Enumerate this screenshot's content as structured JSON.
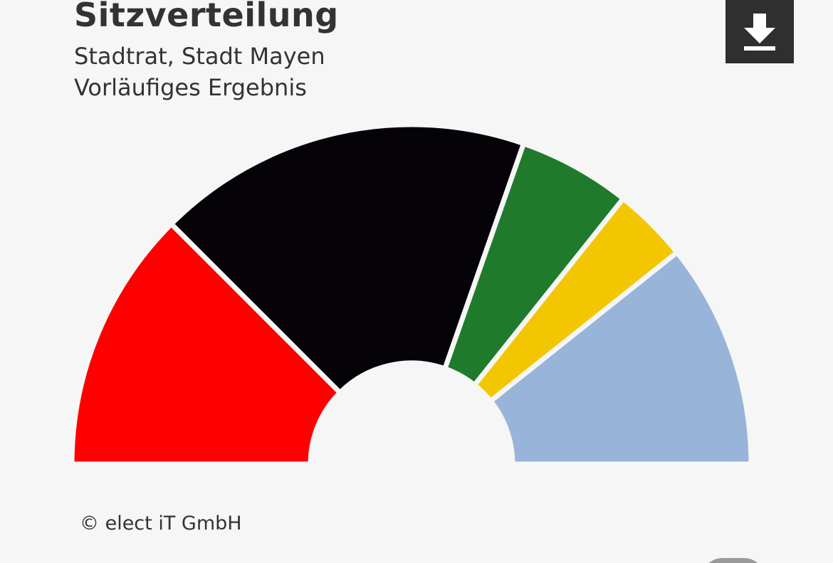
{
  "header": {
    "title": "Sitzverteilung",
    "subtitle_line1": "Stadtrat, Stadt Mayen",
    "subtitle_line2": "Vorläufiges Ergebnis"
  },
  "download_button": {
    "icon": "download-icon"
  },
  "footer": {
    "copyright": "© elect iT GmbH"
  },
  "chart_data": {
    "type": "pie",
    "variant": "semicircle-parliament",
    "title": "Sitzverteilung",
    "legend": "none",
    "series": [
      {
        "value": 7,
        "color": "#ff0000"
      },
      {
        "value": 10,
        "color": "#050308"
      },
      {
        "value": 3,
        "color": "#1f7a2b"
      },
      {
        "value": 2,
        "color": "#f2c600"
      },
      {
        "value": 6,
        "color": "#98b4d8"
      }
    ]
  }
}
